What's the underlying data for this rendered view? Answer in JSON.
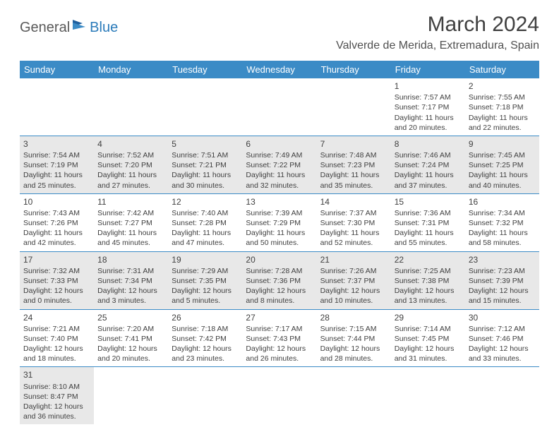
{
  "logo": {
    "part1": "General",
    "part2": "Blue"
  },
  "header": {
    "title": "March 2024",
    "location": "Valverde de Merida, Extremadura, Spain"
  },
  "columns": [
    "Sunday",
    "Monday",
    "Tuesday",
    "Wednesday",
    "Thursday",
    "Friday",
    "Saturday"
  ],
  "colors": {
    "header_bg": "#3b8bc6",
    "header_fg": "#ffffff",
    "shaded_bg": "#e8e8e8",
    "text": "#404040",
    "logo_gray": "#5a5a5a",
    "logo_blue": "#2b7bba",
    "border": "#3b8bc6",
    "background": "#ffffff"
  },
  "typography": {
    "title_fontsize": 30,
    "location_fontsize": 16,
    "dayheader_fontsize": 13,
    "cell_fontsize": 10.5,
    "daynum_fontsize": 12,
    "logo_fontsize": 20
  },
  "weeks": [
    {
      "shaded": false,
      "days": [
        null,
        null,
        null,
        null,
        null,
        {
          "n": "1",
          "sr": "7:57 AM",
          "ss": "7:17 PM",
          "dl": "11 hours and 20 minutes."
        },
        {
          "n": "2",
          "sr": "7:55 AM",
          "ss": "7:18 PM",
          "dl": "11 hours and 22 minutes."
        }
      ]
    },
    {
      "shaded": true,
      "days": [
        {
          "n": "3",
          "sr": "7:54 AM",
          "ss": "7:19 PM",
          "dl": "11 hours and 25 minutes."
        },
        {
          "n": "4",
          "sr": "7:52 AM",
          "ss": "7:20 PM",
          "dl": "11 hours and 27 minutes."
        },
        {
          "n": "5",
          "sr": "7:51 AM",
          "ss": "7:21 PM",
          "dl": "11 hours and 30 minutes."
        },
        {
          "n": "6",
          "sr": "7:49 AM",
          "ss": "7:22 PM",
          "dl": "11 hours and 32 minutes."
        },
        {
          "n": "7",
          "sr": "7:48 AM",
          "ss": "7:23 PM",
          "dl": "11 hours and 35 minutes."
        },
        {
          "n": "8",
          "sr": "7:46 AM",
          "ss": "7:24 PM",
          "dl": "11 hours and 37 minutes."
        },
        {
          "n": "9",
          "sr": "7:45 AM",
          "ss": "7:25 PM",
          "dl": "11 hours and 40 minutes."
        }
      ]
    },
    {
      "shaded": false,
      "days": [
        {
          "n": "10",
          "sr": "7:43 AM",
          "ss": "7:26 PM",
          "dl": "11 hours and 42 minutes."
        },
        {
          "n": "11",
          "sr": "7:42 AM",
          "ss": "7:27 PM",
          "dl": "11 hours and 45 minutes."
        },
        {
          "n": "12",
          "sr": "7:40 AM",
          "ss": "7:28 PM",
          "dl": "11 hours and 47 minutes."
        },
        {
          "n": "13",
          "sr": "7:39 AM",
          "ss": "7:29 PM",
          "dl": "11 hours and 50 minutes."
        },
        {
          "n": "14",
          "sr": "7:37 AM",
          "ss": "7:30 PM",
          "dl": "11 hours and 52 minutes."
        },
        {
          "n": "15",
          "sr": "7:36 AM",
          "ss": "7:31 PM",
          "dl": "11 hours and 55 minutes."
        },
        {
          "n": "16",
          "sr": "7:34 AM",
          "ss": "7:32 PM",
          "dl": "11 hours and 58 minutes."
        }
      ]
    },
    {
      "shaded": true,
      "days": [
        {
          "n": "17",
          "sr": "7:32 AM",
          "ss": "7:33 PM",
          "dl": "12 hours and 0 minutes."
        },
        {
          "n": "18",
          "sr": "7:31 AM",
          "ss": "7:34 PM",
          "dl": "12 hours and 3 minutes."
        },
        {
          "n": "19",
          "sr": "7:29 AM",
          "ss": "7:35 PM",
          "dl": "12 hours and 5 minutes."
        },
        {
          "n": "20",
          "sr": "7:28 AM",
          "ss": "7:36 PM",
          "dl": "12 hours and 8 minutes."
        },
        {
          "n": "21",
          "sr": "7:26 AM",
          "ss": "7:37 PM",
          "dl": "12 hours and 10 minutes."
        },
        {
          "n": "22",
          "sr": "7:25 AM",
          "ss": "7:38 PM",
          "dl": "12 hours and 13 minutes."
        },
        {
          "n": "23",
          "sr": "7:23 AM",
          "ss": "7:39 PM",
          "dl": "12 hours and 15 minutes."
        }
      ]
    },
    {
      "shaded": false,
      "days": [
        {
          "n": "24",
          "sr": "7:21 AM",
          "ss": "7:40 PM",
          "dl": "12 hours and 18 minutes."
        },
        {
          "n": "25",
          "sr": "7:20 AM",
          "ss": "7:41 PM",
          "dl": "12 hours and 20 minutes."
        },
        {
          "n": "26",
          "sr": "7:18 AM",
          "ss": "7:42 PM",
          "dl": "12 hours and 23 minutes."
        },
        {
          "n": "27",
          "sr": "7:17 AM",
          "ss": "7:43 PM",
          "dl": "12 hours and 26 minutes."
        },
        {
          "n": "28",
          "sr": "7:15 AM",
          "ss": "7:44 PM",
          "dl": "12 hours and 28 minutes."
        },
        {
          "n": "29",
          "sr": "7:14 AM",
          "ss": "7:45 PM",
          "dl": "12 hours and 31 minutes."
        },
        {
          "n": "30",
          "sr": "7:12 AM",
          "ss": "7:46 PM",
          "dl": "12 hours and 33 minutes."
        }
      ]
    },
    {
      "shaded": true,
      "days": [
        {
          "n": "31",
          "sr": "8:10 AM",
          "ss": "8:47 PM",
          "dl": "12 hours and 36 minutes."
        },
        null,
        null,
        null,
        null,
        null,
        null
      ]
    }
  ],
  "labels": {
    "sunrise": "Sunrise: ",
    "sunset": "Sunset: ",
    "daylight": "Daylight: "
  }
}
